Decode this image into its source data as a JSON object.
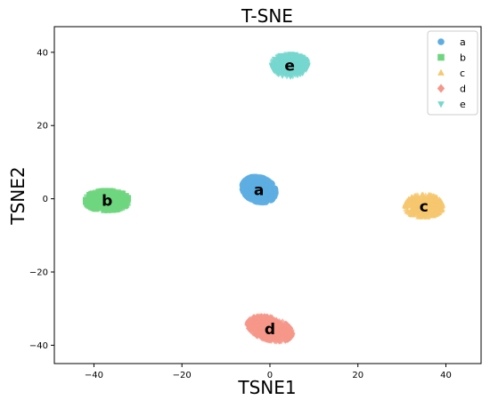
{
  "chart_data": {
    "type": "scatter",
    "title": "T-SNE",
    "xlabel": "TSNE1",
    "ylabel": "TSNE2",
    "xlim": [
      -49,
      48
    ],
    "ylim": [
      -45,
      47
    ],
    "xticks": [
      -40,
      -20,
      0,
      20,
      40
    ],
    "yticks": [
      -40,
      -20,
      0,
      20,
      40
    ],
    "xtick_labels": [
      "−40",
      "−20",
      "0",
      "20",
      "40"
    ],
    "ytick_labels": [
      "−40",
      "−20",
      "0",
      "20",
      "40"
    ],
    "grid": false,
    "legend_position": "top-right",
    "series": [
      {
        "name": "a",
        "marker": "circle",
        "color": "#5dade2",
        "center": [
          -2.5,
          2.5
        ],
        "spread": [
          4.0,
          3.2
        ],
        "angle": -35,
        "count": 320
      },
      {
        "name": "b",
        "marker": "square",
        "color": "#6fd67f",
        "center": [
          -37,
          -0.5
        ],
        "spread": [
          4.8,
          2.6
        ],
        "angle": 0,
        "count": 320
      },
      {
        "name": "c",
        "marker": "triangle",
        "color": "#f6c76f",
        "center": [
          35,
          -2
        ],
        "spread": [
          4.2,
          3.0
        ],
        "angle": 0,
        "count": 320
      },
      {
        "name": "d",
        "marker": "diamond",
        "color": "#f5978a",
        "center": [
          0,
          -35.5
        ],
        "spread": [
          5.2,
          2.8
        ],
        "angle": -20,
        "count": 320
      },
      {
        "name": "e",
        "marker": "tri_down",
        "color": "#76d7cf",
        "center": [
          4.5,
          36.5
        ],
        "spread": [
          4.0,
          3.0
        ],
        "angle": 0,
        "count": 320
      }
    ]
  }
}
